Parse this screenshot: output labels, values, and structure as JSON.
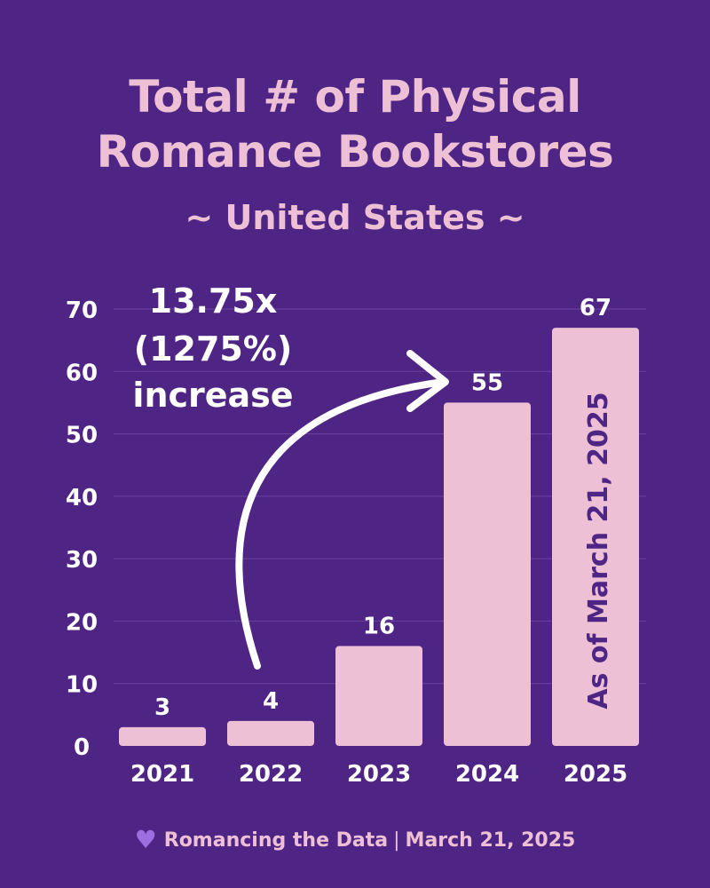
{
  "header": {
    "title_line1": "Total # of Physical",
    "title_line2": "Romance Bookstores",
    "subtitle": "~ United States ~"
  },
  "colors": {
    "background": "#4e2584",
    "bar": "#eec0d6",
    "text_light": "#ffffff",
    "accent_pink": "#eec0d6",
    "annotation_inside_bar": "#4e2584",
    "heart": "#9b6fe0"
  },
  "chart_data": {
    "type": "bar",
    "categories": [
      "2021",
      "2022",
      "2023",
      "2024",
      "2025"
    ],
    "values": [
      3,
      4,
      16,
      55,
      67
    ],
    "data_labels": [
      "3",
      "4",
      "16",
      "55",
      "67"
    ],
    "title": "Total # of Physical Romance Bookstores",
    "subtitle": "~ United States ~",
    "xlabel": "",
    "ylabel": "",
    "ylim": [
      0,
      70
    ],
    "yticks": [
      0,
      10,
      20,
      30,
      40,
      50,
      60,
      70
    ],
    "grid": true,
    "annotations": {
      "growth_line1": "13.75x",
      "growth_line2": "(1275%)",
      "growth_line3": "increase",
      "bar_note": "As of March 21, 2025"
    }
  },
  "footer": {
    "heart_icon": "heart-icon",
    "source": "Romancing the Data",
    "separator": "|",
    "date": "March 21, 2025"
  }
}
